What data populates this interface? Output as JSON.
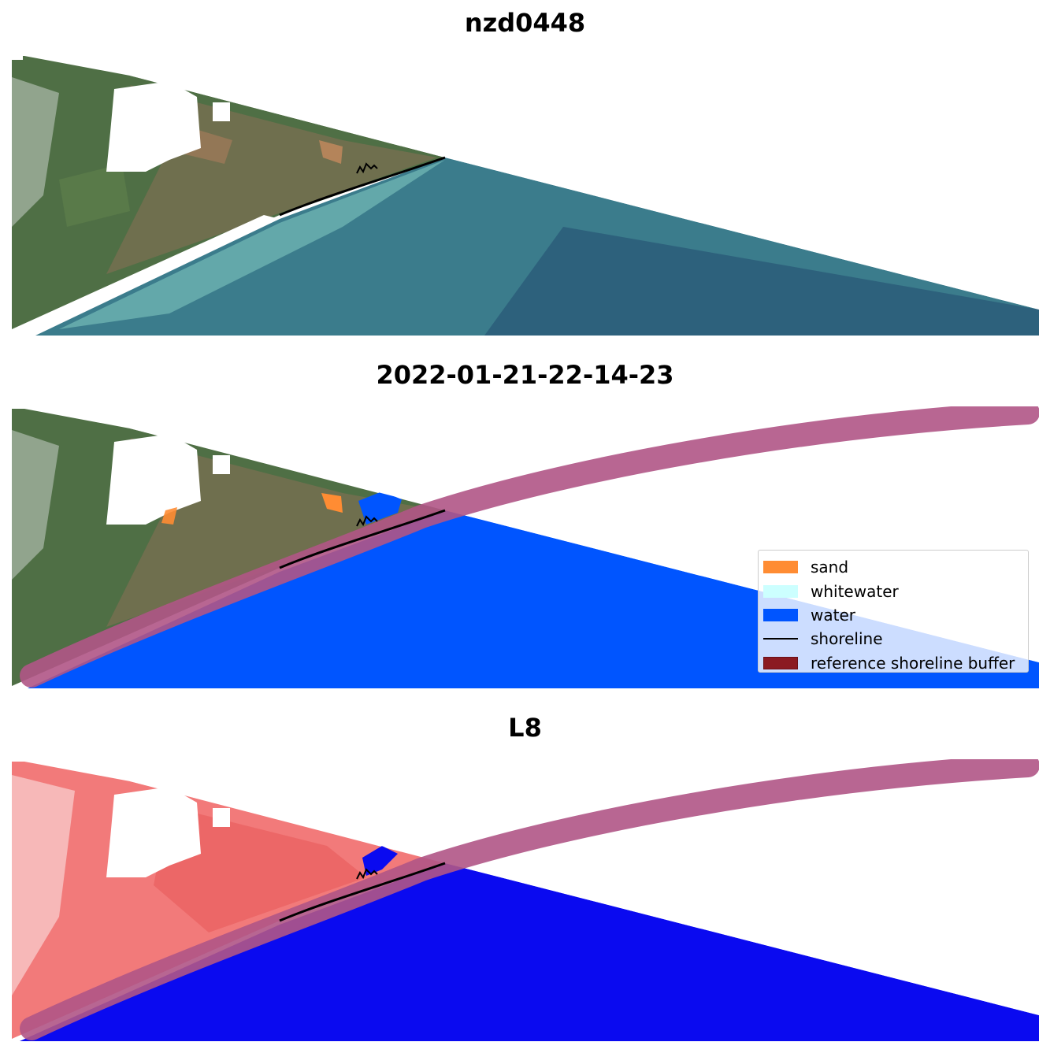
{
  "panels": [
    {
      "title": "nzd0448",
      "mode": "rgb"
    },
    {
      "title": "2022-01-21-22-14-23",
      "mode": "classified"
    },
    {
      "title": "L8",
      "mode": "index"
    }
  ],
  "legend": {
    "items": [
      {
        "label": "sand",
        "color": "#ff8c33",
        "kind": "patch"
      },
      {
        "label": "whitewater",
        "color": "#ccffff",
        "kind": "patch"
      },
      {
        "label": "water",
        "color": "#0055ff",
        "kind": "patch"
      },
      {
        "label": "shoreline",
        "color": "#000000",
        "kind": "line"
      },
      {
        "label": "reference shoreline buffer",
        "color": "#8b1a22",
        "kind": "patch"
      }
    ]
  },
  "colors": {
    "land_green": "#4d6e44",
    "sea_rgb": "#3b7c8c",
    "sea_rgb_deep": "#2a5a78",
    "surf": "#7fc7be",
    "water_class": "#0055ff",
    "sand_class": "#ff8c33",
    "buffer": "#b05586",
    "index_land": "#f27a7a",
    "index_water": "#0a0af0",
    "shoreline": "#000000"
  }
}
